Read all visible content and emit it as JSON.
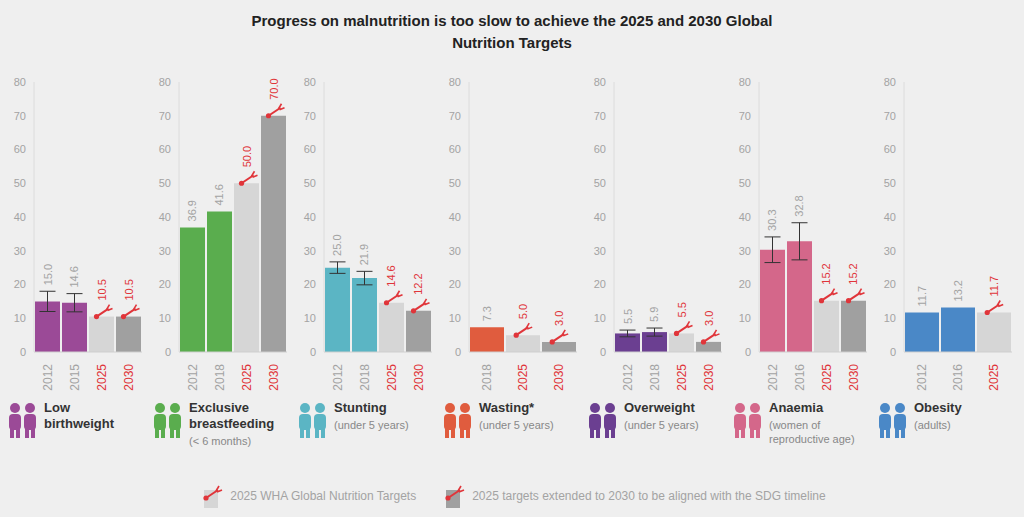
{
  "title": "Progress on malnutrition is too slow to achieve the 2025 and 2030 Global Nutrition Targets",
  "legend_items": [
    {
      "label": "2025 WHA Global Nutrition Targets",
      "color": "#d6d6d6"
    },
    {
      "label": "2025 targets extended to 2030 to be aligned with the SDG timeline",
      "color": "#a0a0a0"
    }
  ],
  "chart_data": [
    {
      "type": "bar",
      "title": "Low birthweight",
      "categories": [
        "2012",
        "2015",
        "2025",
        "2030"
      ],
      "values": [
        15.0,
        14.6,
        10.5,
        10.5
      ],
      "value_labels": [
        "15.0",
        "14.6",
        "10.5",
        "10.5"
      ],
      "errors": [
        3.0,
        2.7,
        null,
        null
      ],
      "colors": [
        "#9b4a97",
        "#9b4a97",
        "#d6d6d6",
        "#a0a0a0"
      ],
      "ylim": [
        0,
        80
      ],
      "yticks": [
        0,
        10,
        20,
        30,
        40,
        50,
        60,
        70,
        80
      ],
      "grid": false,
      "data_labels": true
    },
    {
      "type": "bar",
      "title": "Exclusive breastfeeding",
      "subtitle": "(< 6 months)",
      "categories": [
        "2012",
        "2018",
        "2025",
        "2030"
      ],
      "values": [
        36.9,
        41.6,
        50.0,
        70.0
      ],
      "value_labels": [
        "36.9",
        "41.6",
        "50.0",
        "70.0"
      ],
      "colors": [
        "#5aad4e",
        "#5aad4e",
        "#d6d6d6",
        "#a0a0a0"
      ],
      "ylim": [
        0,
        80
      ],
      "yticks": [
        0,
        10,
        20,
        30,
        40,
        50,
        60,
        70,
        80
      ],
      "grid": false,
      "data_labels": true
    },
    {
      "type": "bar",
      "title": "Stunting",
      "subtitle": "(under 5 years)",
      "categories": [
        "2012",
        "2018",
        "2025",
        "2030"
      ],
      "values": [
        25.0,
        21.9,
        14.6,
        12.2
      ],
      "value_labels": [
        "25.0",
        "21.9",
        "14.6",
        "12.2"
      ],
      "errors": [
        1.7,
        2.0,
        null,
        null
      ],
      "colors": [
        "#5bb5c4",
        "#5bb5c4",
        "#d6d6d6",
        "#a0a0a0"
      ],
      "ylim": [
        0,
        80
      ],
      "yticks": [
        0,
        10,
        20,
        30,
        40,
        50,
        60,
        70,
        80
      ],
      "grid": false,
      "data_labels": true
    },
    {
      "type": "bar",
      "title": "Wasting*",
      "subtitle": "(under 5 years)",
      "categories": [
        "2018",
        "2025",
        "2030"
      ],
      "values": [
        7.3,
        5.0,
        3.0
      ],
      "value_labels": [
        "7.3",
        "5.0",
        "3.0"
      ],
      "colors": [
        "#e05c3e",
        "#d6d6d6",
        "#a0a0a0"
      ],
      "ylim": [
        0,
        80
      ],
      "yticks": [
        0,
        10,
        20,
        30,
        40,
        50,
        60,
        70,
        80
      ],
      "grid": false,
      "data_labels": true
    },
    {
      "type": "bar",
      "title": "Overweight",
      "subtitle": "(under 5 years)",
      "categories": [
        "2012",
        "2018",
        "2025",
        "2030"
      ],
      "values": [
        5.5,
        5.9,
        5.5,
        3.0
      ],
      "value_labels": [
        "5.5",
        "5.9",
        "5.5",
        "3.0"
      ],
      "errors": [
        1.0,
        1.2,
        null,
        null
      ],
      "colors": [
        "#6b3f91",
        "#6b3f91",
        "#d6d6d6",
        "#a0a0a0"
      ],
      "ylim": [
        0,
        80
      ],
      "yticks": [
        0,
        10,
        20,
        30,
        40,
        50,
        60,
        70,
        80
      ],
      "grid": false,
      "data_labels": true
    },
    {
      "type": "bar",
      "title": "Anaemia",
      "subtitle": "(women of reproductive age)",
      "categories": [
        "2012",
        "2016",
        "2025",
        "2030"
      ],
      "values": [
        30.3,
        32.8,
        15.2,
        15.2
      ],
      "value_labels": [
        "30.3",
        "32.8",
        "15.2",
        "15.2"
      ],
      "errors": [
        3.8,
        5.5,
        null,
        null
      ],
      "colors": [
        "#d4678a",
        "#d4678a",
        "#d6d6d6",
        "#a0a0a0"
      ],
      "ylim": [
        0,
        80
      ],
      "yticks": [
        0,
        10,
        20,
        30,
        40,
        50,
        60,
        70,
        80
      ],
      "grid": false,
      "data_labels": true
    },
    {
      "type": "bar",
      "title": "Obesity",
      "subtitle": "(adults)",
      "categories": [
        "2012",
        "2016",
        "2025"
      ],
      "values": [
        11.7,
        13.2,
        11.7
      ],
      "value_labels": [
        "11.7",
        "13.2",
        "11.7"
      ],
      "colors": [
        "#4a88c7",
        "#4a88c7",
        "#d6d6d6"
      ],
      "ylim": [
        0,
        80
      ],
      "yticks": [
        0,
        10,
        20,
        30,
        40,
        50,
        60,
        70,
        80
      ],
      "grid": false,
      "data_labels": true
    }
  ]
}
